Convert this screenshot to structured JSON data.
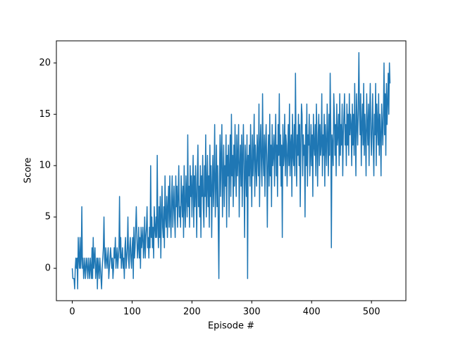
{
  "chart_data": {
    "type": "line",
    "xlabel": "Episode #",
    "ylabel": "Score",
    "xlim": [
      -26.55,
      557.55
    ],
    "xticks": [
      0,
      100,
      200,
      300,
      400,
      500
    ],
    "ylim": [
      -3.15,
      22.15
    ],
    "yticks": [
      0,
      5,
      10,
      15,
      20
    ],
    "grid": false,
    "series": [
      {
        "color": "#1f77b4",
        "values": [
          0,
          -1,
          -1,
          -1,
          -2,
          0,
          1,
          0,
          1,
          -2,
          3,
          1,
          0,
          3,
          0,
          1,
          6,
          0,
          1,
          -1,
          0,
          1,
          -1,
          0,
          1,
          0,
          -1,
          1,
          0,
          -1,
          1,
          0,
          -1,
          2,
          -1,
          3,
          0,
          1,
          2,
          -1,
          0,
          1,
          -2,
          1,
          0,
          -1,
          1,
          0,
          -1,
          -2,
          0,
          1,
          2,
          5,
          1,
          0,
          2,
          1,
          0,
          1,
          2,
          -1,
          0,
          1,
          2,
          1,
          0,
          1,
          -1,
          0,
          2,
          1,
          3,
          0,
          1,
          2,
          0,
          1,
          2,
          7,
          1,
          3,
          0,
          1,
          2,
          0,
          1,
          -1,
          2,
          3,
          0,
          1,
          2,
          5,
          1,
          0,
          2,
          3,
          1,
          0,
          2,
          3,
          -1,
          4,
          1,
          2,
          4,
          6,
          3,
          1,
          2,
          4,
          1,
          3,
          0,
          4,
          2,
          3,
          4,
          1,
          2,
          5,
          1,
          3,
          4,
          6,
          2,
          3,
          1,
          4,
          2,
          10,
          3,
          5,
          2,
          4,
          1,
          6,
          4,
          3,
          5,
          3,
          11,
          4,
          2,
          6,
          3,
          7,
          1,
          5,
          8,
          4,
          3,
          6,
          2,
          9,
          5,
          4,
          7,
          3,
          6,
          8,
          4,
          9,
          5,
          3,
          7,
          9,
          4,
          6,
          8,
          5,
          3,
          9,
          6,
          8,
          4,
          7,
          10,
          5,
          6,
          4,
          9,
          7,
          5,
          8,
          3,
          10,
          6,
          4,
          9,
          7,
          5,
          13,
          6,
          8,
          4,
          10,
          7,
          9,
          5,
          8,
          11,
          4,
          9,
          6,
          10,
          7,
          3,
          9,
          12,
          6,
          8,
          5,
          10,
          3,
          9,
          7,
          11,
          6,
          4,
          10,
          7,
          13,
          5,
          8,
          11,
          6,
          9,
          4,
          12,
          7,
          10,
          3,
          8,
          11,
          6,
          9,
          14,
          5,
          8,
          12,
          6,
          10,
          4,
          -1,
          9,
          13,
          7,
          11,
          14,
          5,
          9,
          12,
          6,
          10,
          8,
          13,
          4,
          11,
          9,
          12,
          5,
          10,
          13,
          7,
          15,
          9,
          11,
          6,
          12,
          8,
          14,
          10,
          7,
          13,
          9,
          11,
          14,
          5,
          10,
          12,
          8,
          13,
          6,
          11,
          14,
          9,
          3,
          12,
          10,
          7,
          13,
          -1,
          11,
          9,
          12,
          8,
          14,
          10,
          6,
          13,
          9,
          11,
          15,
          7,
          12,
          10,
          8,
          13,
          11,
          9,
          16,
          6,
          12,
          14,
          10,
          8,
          17,
          11,
          9,
          13,
          7,
          12,
          14,
          10,
          4,
          11,
          13,
          8,
          15,
          9,
          12,
          6,
          14,
          10,
          11,
          13,
          8,
          12,
          15,
          9,
          12,
          7,
          14,
          11,
          17,
          10,
          13,
          8,
          12,
          3,
          14,
          10,
          11,
          15,
          9,
          13,
          12,
          8,
          11,
          14,
          10,
          16,
          9,
          12,
          13,
          7,
          15,
          11,
          10,
          14,
          9,
          19,
          12,
          8,
          13,
          11,
          15,
          10,
          14,
          6,
          12,
          16,
          15,
          9,
          13,
          11,
          12,
          5,
          14,
          10,
          16,
          8,
          13,
          12,
          15,
          9,
          11,
          14,
          10,
          13,
          7,
          15,
          12,
          11,
          14,
          9,
          16,
          12,
          8,
          13,
          15,
          10,
          14,
          11,
          12,
          17,
          9,
          13,
          11,
          15,
          8,
          14,
          12,
          10,
          16,
          13,
          9,
          15,
          11,
          19,
          14,
          2,
          13,
          12,
          10,
          17,
          15,
          11,
          14,
          9,
          16,
          12,
          13,
          15,
          10,
          17,
          11,
          14,
          12,
          16,
          9,
          13,
          15,
          17,
          12,
          14,
          10,
          16,
          12,
          15,
          11,
          17,
          13,
          15,
          14,
          10,
          16,
          12,
          15,
          11,
          18,
          13,
          9,
          17,
          14,
          12,
          16,
          21,
          15,
          13,
          17,
          10,
          14,
          16,
          12,
          18,
          11,
          15,
          13,
          9,
          17,
          14,
          12,
          16,
          10,
          15,
          18,
          13,
          11,
          14,
          17,
          12,
          9,
          15,
          13,
          18,
          10,
          16,
          14,
          12,
          17,
          11,
          15,
          13,
          9,
          16,
          14,
          12,
          15,
          20,
          13,
          17,
          11,
          18,
          14,
          16,
          19,
          15,
          20,
          18
        ]
      }
    ]
  }
}
